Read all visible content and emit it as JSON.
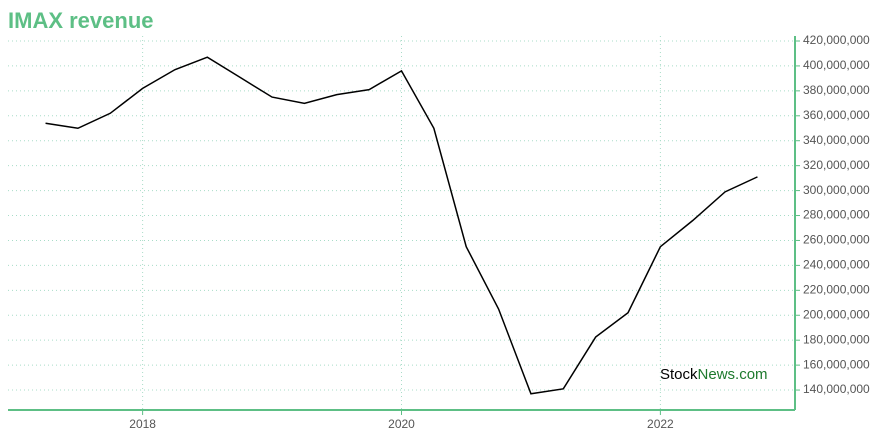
{
  "chart_data": {
    "type": "line",
    "title": "IMAX revenue",
    "watermark": [
      "Stock",
      "News.com"
    ],
    "x": [
      2017.25,
      2017.5,
      2017.75,
      2018,
      2018.25,
      2018.5,
      2018.75,
      2019,
      2019.25,
      2019.5,
      2019.75,
      2020,
      2020.25,
      2020.5,
      2020.75,
      2021,
      2021.25,
      2021.5,
      2021.75,
      2022,
      2022.25,
      2022.5,
      2022.75
    ],
    "series": [
      {
        "color": "#000000",
        "values": [
          354000000,
          350000000,
          362000000,
          382000000,
          397000000,
          407000000,
          391000000,
          375000000,
          370000000,
          377000000,
          381000000,
          396000000,
          350000000,
          255000000,
          205000000,
          137000000,
          141000000,
          182500000,
          202000000,
          255000000,
          276000000,
          299000000,
          311000000
        ]
      }
    ],
    "xlim": [
      2016.96,
      2023.04
    ],
    "xticks": [
      2018,
      2020,
      2022
    ],
    "ylim": [
      124000000,
      424000000
    ],
    "yticks": [
      {
        "value": 140000000,
        "label": "140,000,000"
      },
      {
        "value": 160000000,
        "label": "160,000,000"
      },
      {
        "value": 180000000,
        "label": "180,000,000"
      },
      {
        "value": 200000000,
        "label": "200,000,000"
      },
      {
        "value": 220000000,
        "label": "220,000,000"
      },
      {
        "value": 240000000,
        "label": "240,000,000"
      },
      {
        "value": 260000000,
        "label": "260,000,000"
      },
      {
        "value": 280000000,
        "label": "280,000,000"
      },
      {
        "value": 300000000,
        "label": "300,000,000"
      },
      {
        "value": 320000000,
        "label": "320,000,000"
      },
      {
        "value": 340000000,
        "label": "340,000,000"
      },
      {
        "value": 360000000,
        "label": "360,000,000"
      },
      {
        "value": 380000000,
        "label": "380,000,000"
      },
      {
        "value": 400000000,
        "label": "400,000,000"
      },
      {
        "value": 420000000,
        "label": "420,000,000"
      }
    ],
    "grid": true,
    "axis_color": "#5dbf85"
  }
}
